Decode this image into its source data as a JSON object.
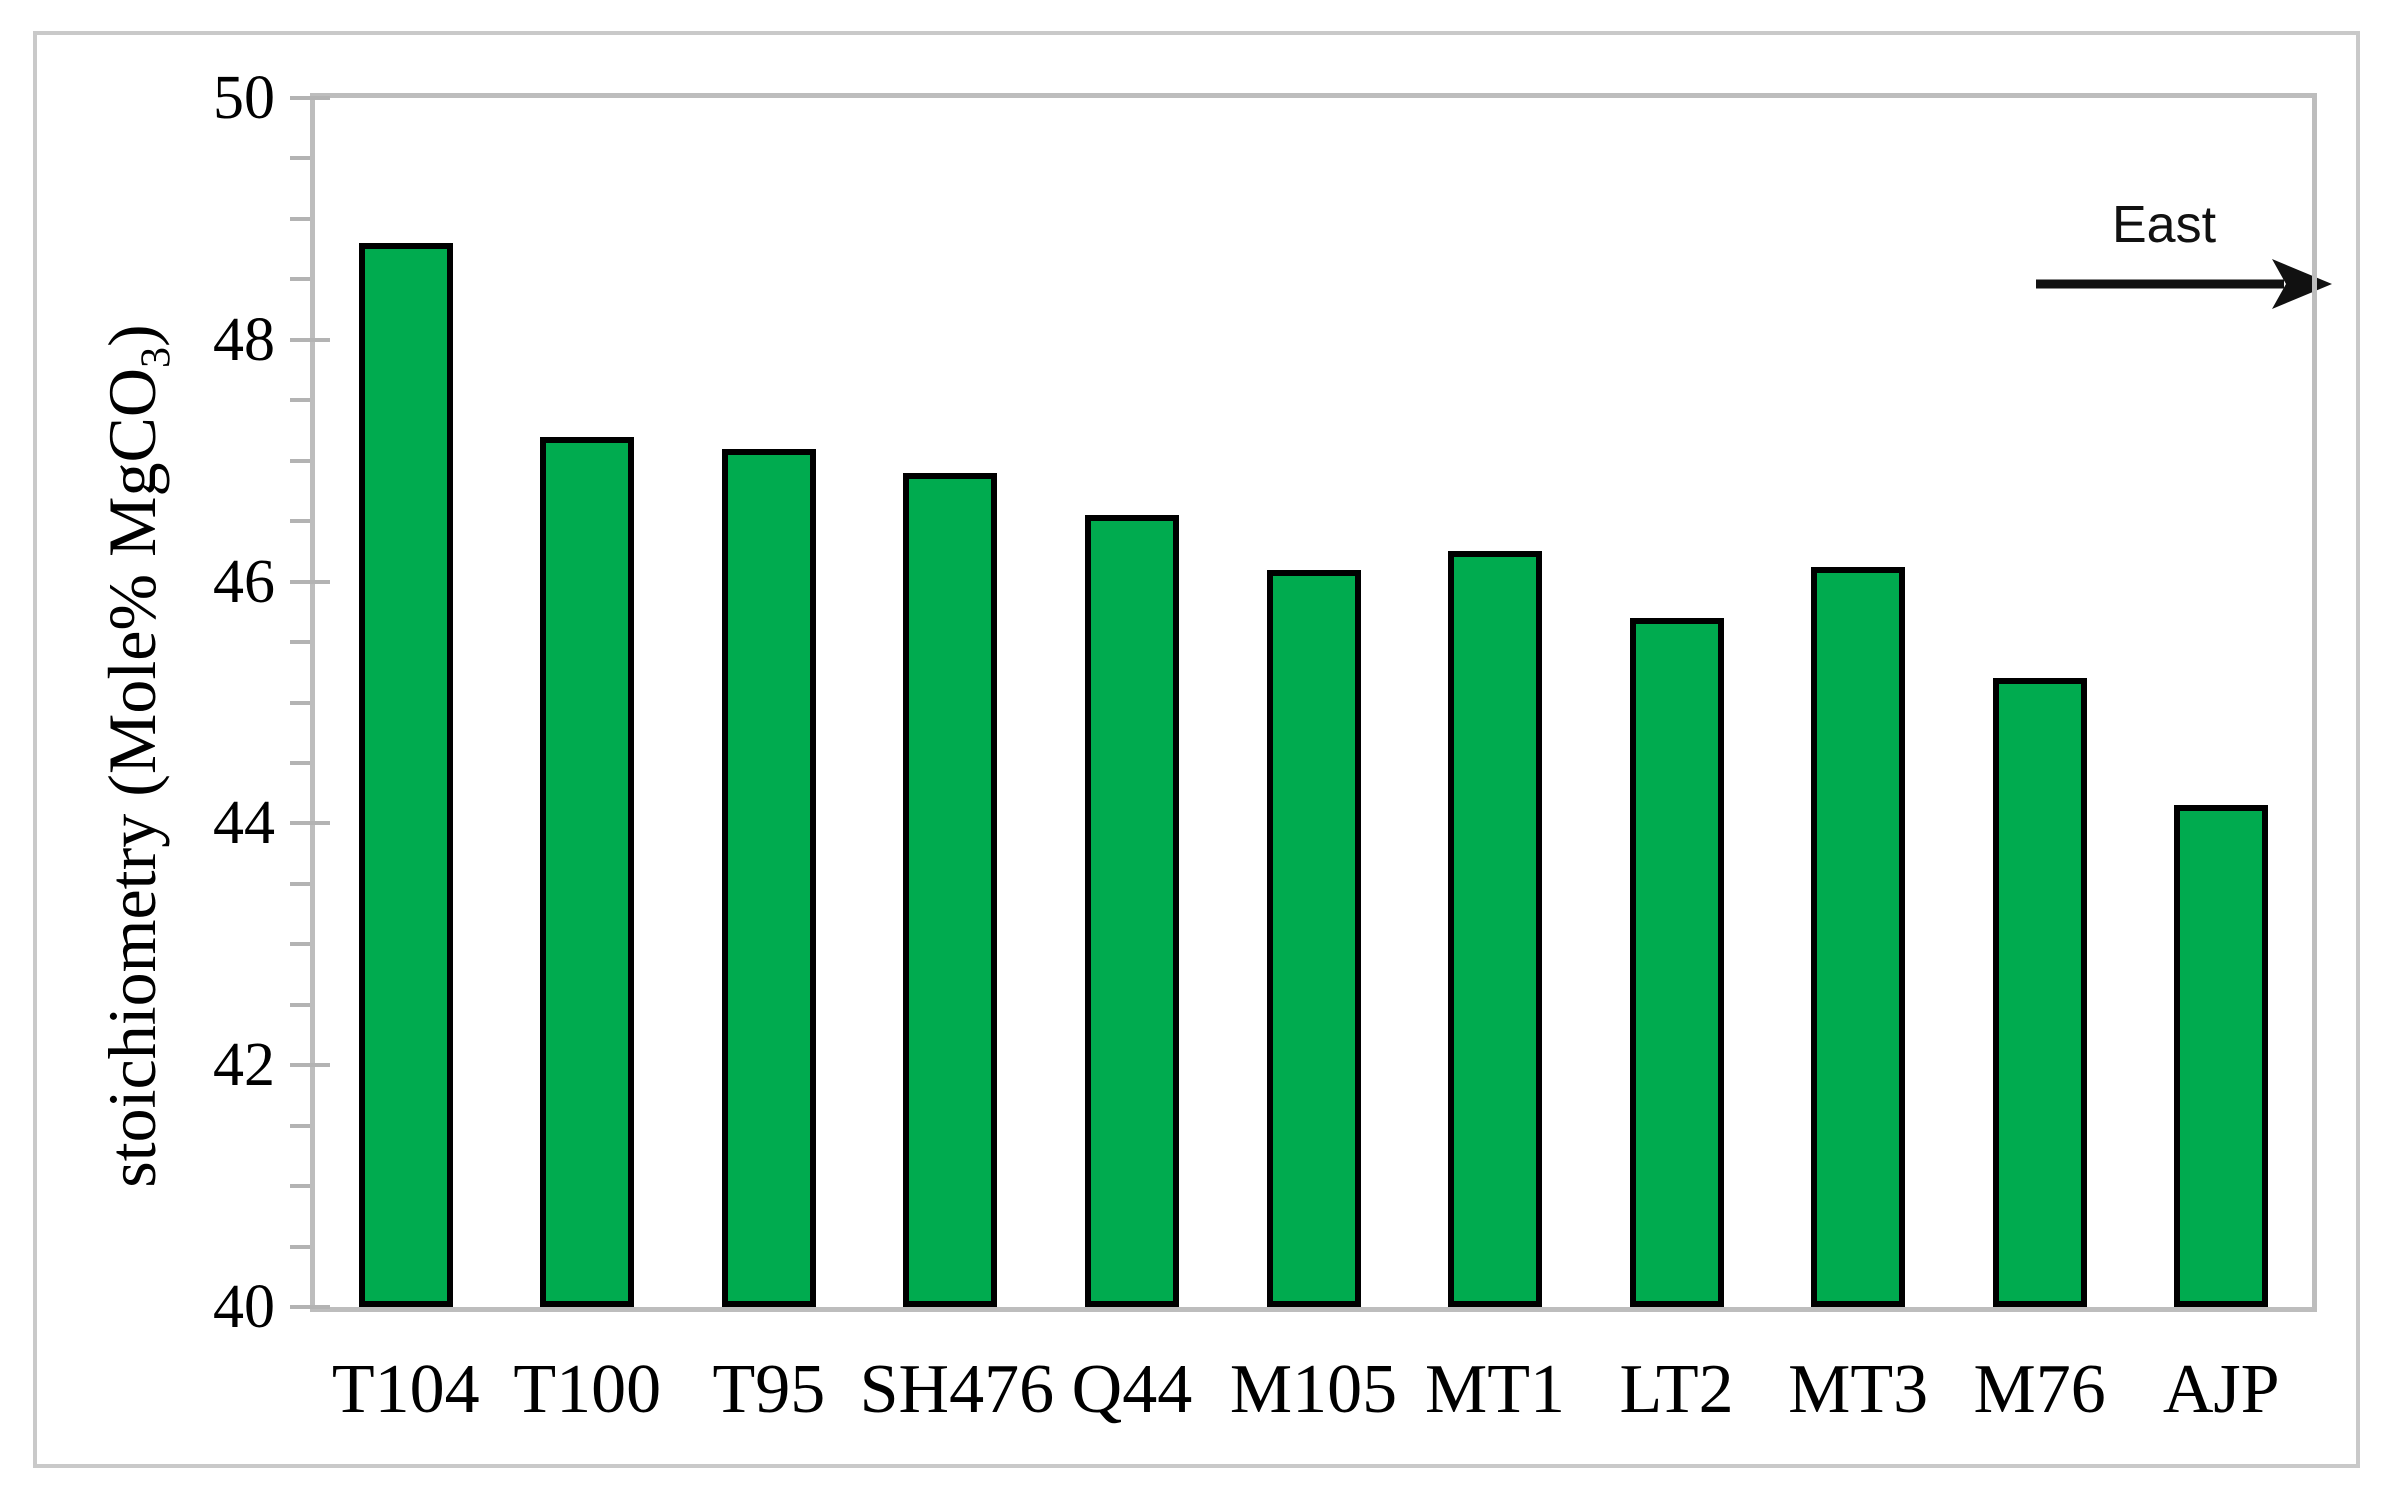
{
  "chart_data": {
    "type": "bar",
    "title": "",
    "xlabel": "",
    "ylabel": "stoichiometry (Mole% MgCO₃)",
    "ylabel_parts": {
      "prefix": "stoichiometry (Mole% MgCO",
      "sub": "3",
      "suffix": ")"
    },
    "categories": [
      "T104",
      "T100",
      "T95",
      "SH476",
      "Q44",
      "M105",
      "MT1",
      "LT2",
      "MT3",
      "M76",
      "AJP"
    ],
    "values": [
      48.8,
      47.2,
      47.1,
      46.9,
      46.55,
      46.1,
      46.25,
      45.7,
      46.12,
      45.2,
      44.15
    ],
    "ylim": [
      40,
      50
    ],
    "ytick_major_step": 2,
    "ytick_minor_step": 0.5,
    "ytick_labels": [
      "40",
      "42",
      "44",
      "46",
      "48",
      "50"
    ],
    "grid": "off",
    "legend": "none",
    "bar_color": "#00ab4f",
    "bar_border_color": "#000000",
    "axis_color": "#bdbdbd",
    "annotation": {
      "text": "East",
      "arrow_direction": "right",
      "position": "top-right"
    }
  }
}
